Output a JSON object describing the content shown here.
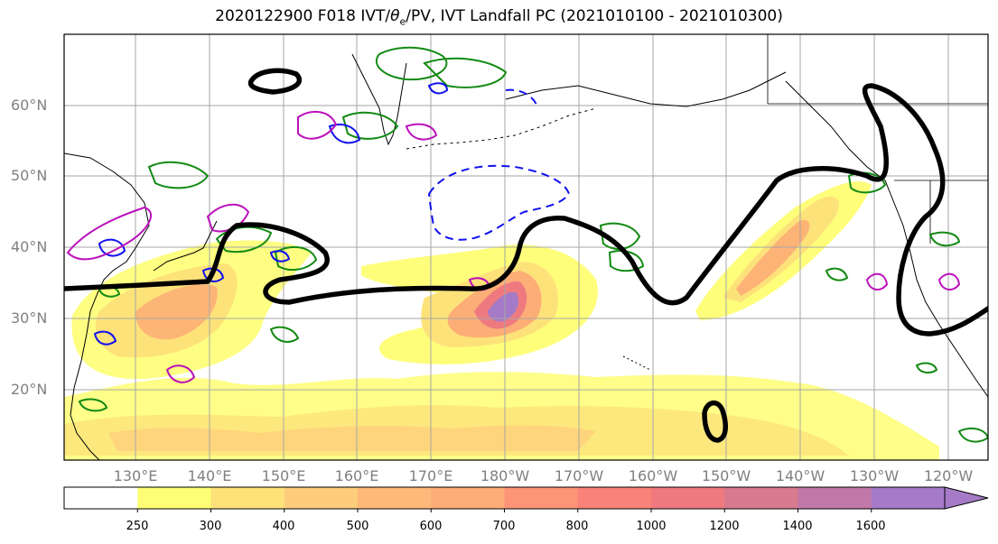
{
  "title": {
    "prefix": "2020122900 F018 IVT/",
    "theta_symbol": "θ",
    "theta_sub": "e",
    "suffix": "/PV, IVT Landfall PC (2021010100 - 2021010300)"
  },
  "axes": {
    "lat_labels": [
      "60°N",
      "50°N",
      "40°N",
      "30°N",
      "20°N"
    ],
    "lon_labels": [
      "130°E",
      "140°E",
      "150°E",
      "160°E",
      "170°E",
      "180°W",
      "170°W",
      "160°W",
      "150°W",
      "140°W",
      "130°W",
      "120°W"
    ]
  },
  "colorbar": {
    "levels": [
      "250",
      "300",
      "400",
      "500",
      "600",
      "700",
      "800",
      "1000",
      "1200",
      "1400",
      "1600"
    ],
    "colors": [
      "#ffffff",
      "#fefe74",
      "#fde27a",
      "#fdcd7c",
      "#feb97a",
      "#fdad76",
      "#fd9476",
      "#f98378",
      "#ee7a80",
      "#d87b8f",
      "#c178a8",
      "#a57bc7"
    ],
    "extend": "max"
  },
  "contour_colors": {
    "ivt_pc": "#000000",
    "pv_green": "#138a13",
    "theta_blue": "#1111ee",
    "theta_magenta": "#bb11bb",
    "grid": "#a6a6a6"
  }
}
